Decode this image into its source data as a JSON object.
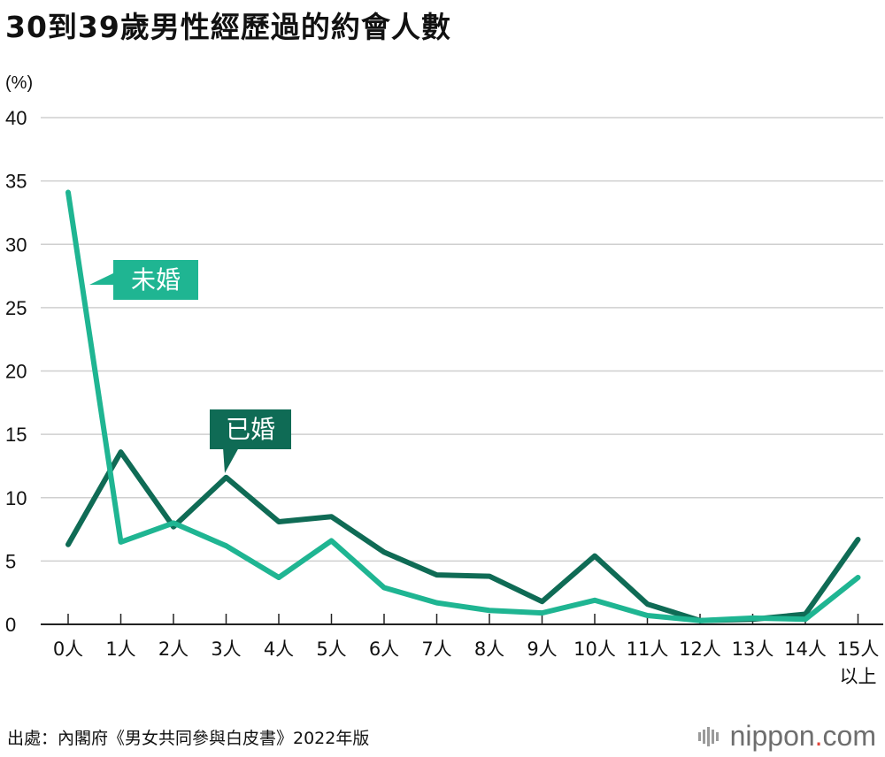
{
  "title": "30到39歲男性經歷過的約會人數",
  "source": "出處：內閣府《男女共同參與白皮書》2022年版",
  "logo": {
    "name": "nippon",
    "dot": ".",
    "suffix": "com"
  },
  "colors": {
    "unmarried": "#1fb592",
    "married": "#0f6b55",
    "grid": "#cfcfcf",
    "axis": "#222222"
  },
  "chart_data": {
    "type": "line",
    "unit": "(%)",
    "categories": [
      "0人",
      "1人",
      "2人",
      "3人",
      "4人",
      "5人",
      "6人",
      "7人",
      "8人",
      "9人",
      "10人",
      "11人",
      "12人",
      "13人",
      "14人",
      "15人\n以上"
    ],
    "ylim": [
      0,
      40
    ],
    "yticks": [
      0,
      5,
      10,
      15,
      20,
      25,
      30,
      35,
      40
    ],
    "grid": true,
    "series": [
      {
        "name": "未婚",
        "color": "#1fb592",
        "values": [
          34.1,
          6.5,
          8.0,
          6.2,
          3.7,
          6.6,
          2.9,
          1.7,
          1.1,
          0.9,
          1.9,
          0.7,
          0.3,
          0.5,
          0.4,
          3.7
        ]
      },
      {
        "name": "已婚",
        "color": "#0f6b55",
        "values": [
          6.3,
          13.6,
          7.7,
          11.6,
          8.1,
          8.5,
          5.7,
          3.9,
          3.8,
          1.8,
          5.4,
          1.6,
          0.3,
          0.4,
          0.8,
          6.7
        ]
      }
    ]
  }
}
